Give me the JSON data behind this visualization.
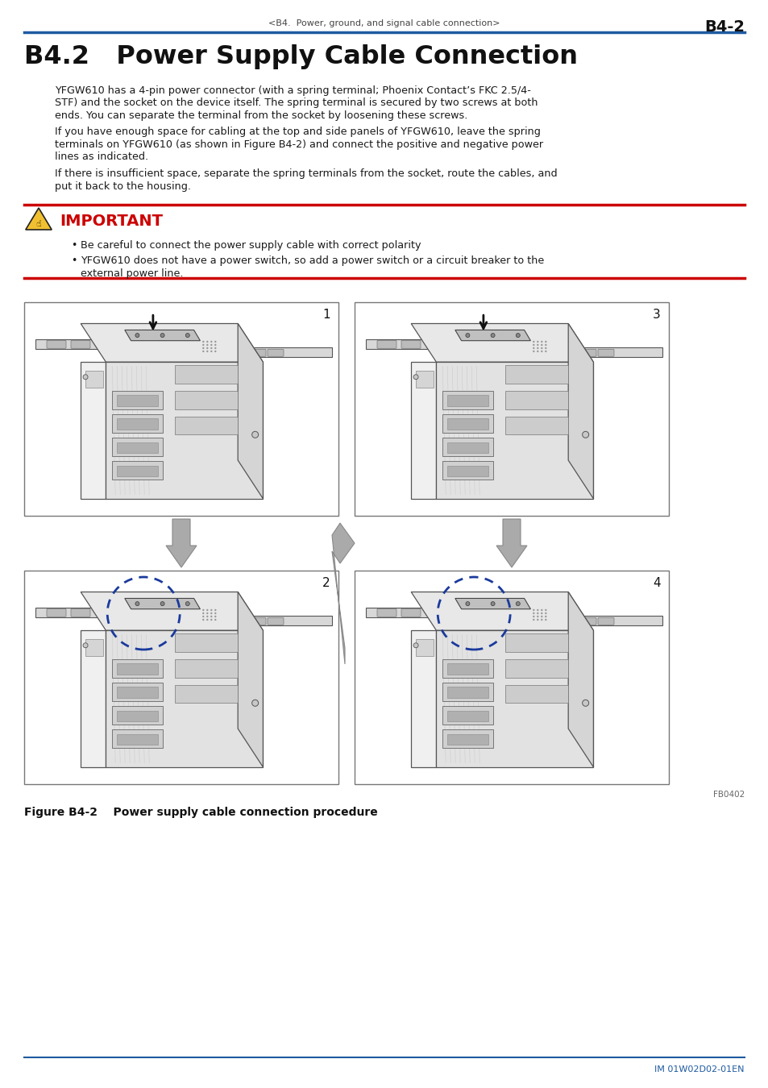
{
  "header_center_text": "<B4.  Power, ground, and signal cable connection>",
  "header_right_text": "B4-2",
  "header_line_color": "#1e5aa0",
  "title": "B4.2   Power Supply Cable Connection",
  "para1_line1": "YFGW610 has a 4-pin power connector (with a spring terminal; Phoenix Contact’s FKC 2.5/4-",
  "para1_line2": "STF) and the socket on the device itself. The spring terminal is secured by two screws at both",
  "para1_line3": "ends. You can separate the terminal from the socket by loosening these screws.",
  "para2_line1": "If you have enough space for cabling at the top and side panels of YFGW610, leave the spring",
  "para2_line2": "terminals on YFGW610 (as shown in Figure B4-2) and connect the positive and negative power",
  "para2_line3": "lines as indicated.",
  "para3_line1": "If there is insufficient space, separate the spring terminals from the socket, route the cables, and",
  "para3_line2": "put it back to the housing.",
  "important_label": "IMPORTANT",
  "important_color": "#cc0000",
  "important_line_color": "#cc0000",
  "bullet1": "Be careful to connect the power supply cable with correct polarity",
  "bullet2_line1": "YFGW610 does not have a power switch, so add a power switch or a circuit breaker to the",
  "bullet2_line2": "external power line.",
  "figure_caption": "Figure B4-2    Power supply cable connection procedure",
  "footer_text": "IM 01W02D02-01EN",
  "footer_line_color": "#1e5aa0",
  "bg_color": "#ffffff",
  "text_color": "#1a1a1a",
  "body_font_size": 9.5,
  "title_font_size": 22,
  "header_font_size": 8.5,
  "footer_ref": "FB0402",
  "img_box_color": "#555555",
  "arrow_color": "#aaaaaa",
  "dashed_circle_color": "#1a3a9c"
}
